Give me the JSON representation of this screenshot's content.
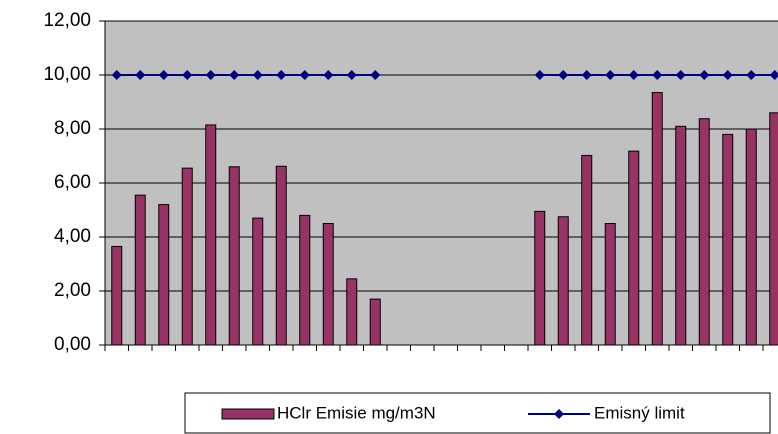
{
  "chart_data": {
    "type": "bar",
    "categories": [
      null,
      null,
      null,
      null,
      null,
      null,
      null,
      null,
      null,
      null,
      null,
      null,
      null,
      null,
      null,
      null,
      null,
      null,
      null,
      null,
      null,
      null,
      null,
      null,
      null,
      null,
      null,
      null,
      null
    ],
    "series": [
      {
        "name": "HClr Emisie mg/m3N",
        "type": "bar",
        "color": "#993366",
        "values": [
          3.65,
          5.55,
          5.2,
          6.55,
          8.15,
          6.6,
          4.7,
          6.62,
          4.8,
          4.5,
          2.45,
          1.7,
          null,
          null,
          null,
          null,
          null,
          null,
          4.95,
          4.75,
          7.02,
          4.5,
          7.18,
          9.35,
          8.1,
          8.38,
          7.8,
          8.0,
          8.6
        ]
      },
      {
        "name": "Emisný limit",
        "type": "line",
        "color": "#000080",
        "values": [
          10,
          10,
          10,
          10,
          10,
          10,
          10,
          10,
          10,
          10,
          10,
          10,
          null,
          null,
          null,
          null,
          null,
          null,
          10,
          10,
          10,
          10,
          10,
          10,
          10,
          10,
          10,
          10,
          10
        ]
      }
    ],
    "ylim": [
      0,
      12
    ],
    "yticks": [
      {
        "value": 0,
        "label": "0,00"
      },
      {
        "value": 2,
        "label": "2,00"
      },
      {
        "value": 4,
        "label": "4,00"
      },
      {
        "value": 6,
        "label": "6,00"
      },
      {
        "value": 8,
        "label": "8,00"
      },
      {
        "value": 10,
        "label": "10,00"
      },
      {
        "value": 12,
        "label": "12,00"
      }
    ],
    "grid": true,
    "legend": "bottom"
  }
}
